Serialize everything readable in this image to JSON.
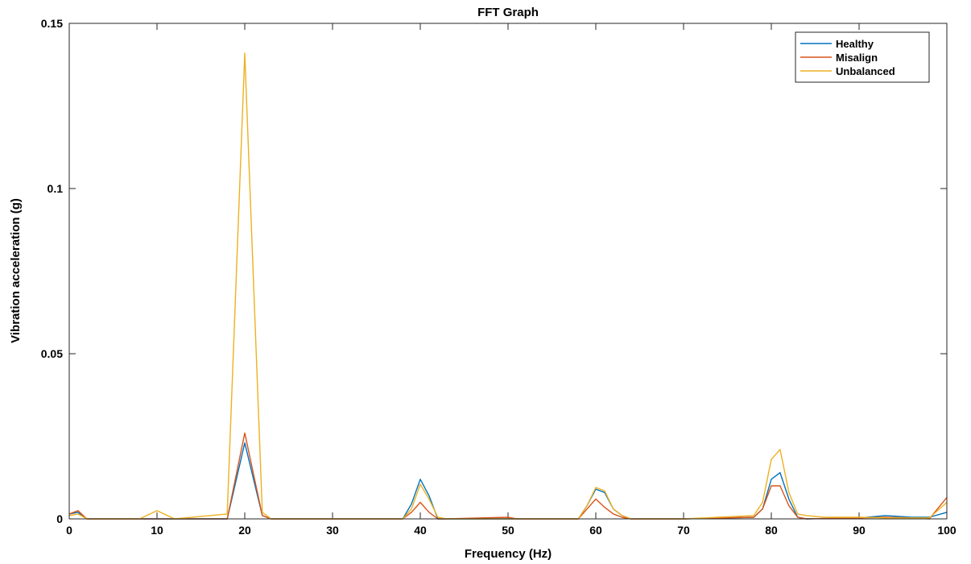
{
  "chart_data": {
    "type": "line",
    "title": "FFT Graph",
    "xlabel": "Frequency (Hz)",
    "ylabel": "Vibration acceleration (g)",
    "xlim": [
      0,
      100
    ],
    "ylim": [
      0,
      0.15
    ],
    "xticks": [
      "0",
      "10",
      "20",
      "30",
      "40",
      "50",
      "60",
      "70",
      "80",
      "90",
      "100"
    ],
    "xtick_values": [
      0,
      10,
      20,
      30,
      40,
      50,
      60,
      70,
      80,
      90,
      100
    ],
    "yticks": [
      "0",
      "0.05",
      "0.1",
      "0.15"
    ],
    "ytick_values": [
      0,
      0.05,
      0.1,
      0.15
    ],
    "grid": false,
    "legend_position": "top-right",
    "series": [
      {
        "name": "Healthy",
        "color": "#0072BD",
        "x": [
          0,
          1,
          2,
          3,
          8,
          10,
          12,
          18,
          20,
          22,
          23,
          25,
          38,
          39,
          40,
          41,
          42,
          43,
          50,
          58,
          59,
          60,
          61,
          62,
          63,
          64,
          70,
          78,
          79,
          80,
          81,
          82,
          83,
          84,
          90,
          93,
          96,
          98,
          100
        ],
        "y": [
          0.0015,
          0.002,
          0.0,
          0.0,
          0.0,
          0.0,
          0.0,
          0.0,
          0.023,
          0.001,
          0.0,
          0.0,
          0.0,
          0.0045,
          0.012,
          0.007,
          0.0,
          0.0,
          0.0,
          0.0,
          0.004,
          0.009,
          0.008,
          0.003,
          0.001,
          0.0,
          0.0,
          0.0005,
          0.003,
          0.012,
          0.014,
          0.006,
          0.0005,
          0.0,
          0.0003,
          0.001,
          0.0005,
          0.0005,
          0.002
        ]
      },
      {
        "name": "Misalign",
        "color": "#D95319",
        "x": [
          0,
          1,
          2,
          3,
          8,
          10,
          12,
          18,
          20,
          22,
          23,
          25,
          38,
          39,
          40,
          41,
          42,
          43,
          50,
          51,
          58,
          59,
          60,
          61,
          62,
          63,
          64,
          70,
          78,
          79,
          80,
          81,
          82,
          83,
          84,
          90,
          93,
          96,
          98,
          100
        ],
        "y": [
          0.0015,
          0.0025,
          0.0,
          0.0,
          0.0,
          0.0,
          0.0,
          0.0,
          0.026,
          0.001,
          0.0,
          0.0,
          0.0,
          0.002,
          0.005,
          0.002,
          0.0,
          0.0,
          0.0005,
          0.0,
          0.0,
          0.003,
          0.006,
          0.0035,
          0.0015,
          0.0005,
          0.0,
          0.0,
          0.0005,
          0.003,
          0.01,
          0.01,
          0.004,
          0.0005,
          0.0,
          0.0003,
          0.0005,
          0.0003,
          0.0,
          0.0065
        ]
      },
      {
        "name": "Unbalanced",
        "color": "#EDB120",
        "x": [
          0,
          1,
          2,
          3,
          8,
          10,
          12,
          18,
          20,
          22,
          23,
          25,
          38,
          39,
          40,
          41,
          42,
          43,
          50,
          58,
          59,
          60,
          61,
          62,
          63,
          64,
          70,
          78,
          79,
          80,
          81,
          82,
          83,
          84,
          86,
          90,
          93,
          96,
          98,
          100
        ],
        "y": [
          0.001,
          0.0015,
          0.0,
          0.0,
          0.0,
          0.0025,
          0.0,
          0.0015,
          0.141,
          0.002,
          0.0,
          0.0,
          0.0,
          0.003,
          0.0105,
          0.006,
          0.0005,
          0.0,
          0.0,
          0.0,
          0.004,
          0.0095,
          0.0085,
          0.003,
          0.001,
          0.0,
          0.0,
          0.001,
          0.005,
          0.018,
          0.021,
          0.008,
          0.0015,
          0.001,
          0.0005,
          0.0005,
          0.0003,
          0.0003,
          0.0003,
          0.005
        ]
      }
    ]
  }
}
